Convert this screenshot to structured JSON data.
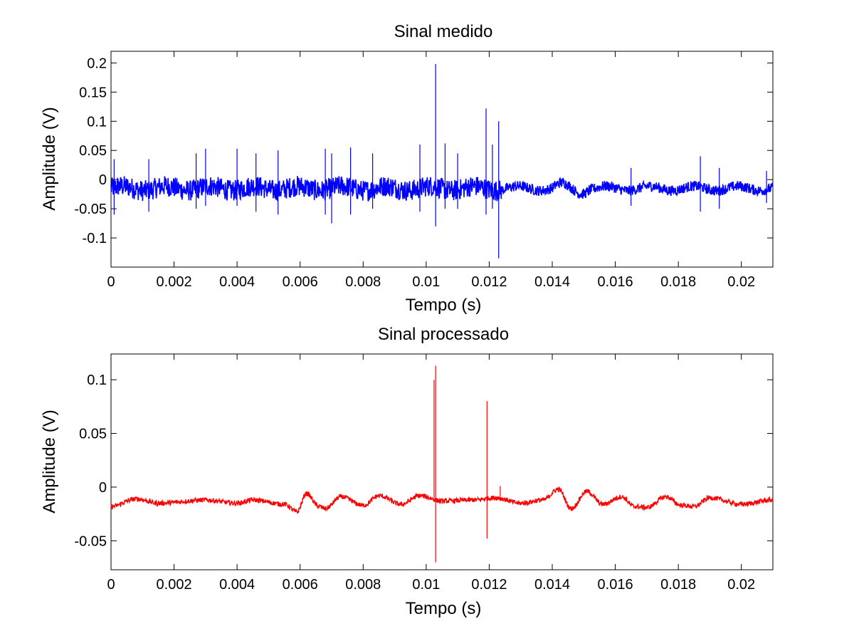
{
  "chart_data": [
    {
      "type": "line",
      "title": "Sinal medido",
      "xlabel": "Tempo (s)",
      "ylabel": "Amplitude (V)",
      "xlim": [
        0,
        0.021
      ],
      "ylim": [
        -0.15,
        0.22
      ],
      "xticks": [
        0,
        0.002,
        0.004,
        0.006,
        0.008,
        0.01,
        0.012,
        0.014,
        0.016,
        0.018,
        0.02
      ],
      "xtick_labels": [
        "0",
        "0.002",
        "0.004",
        "0.006",
        "0.008",
        "0.01",
        "0.012",
        "0.014",
        "0.016",
        "0.018",
        "0.02"
      ],
      "yticks": [
        -0.1,
        -0.05,
        0,
        0.05,
        0.1,
        0.15,
        0.2
      ],
      "ytick_labels": [
        "-0.1",
        "-0.05",
        "0",
        "0.05",
        "0.1",
        "0.15",
        "0.2"
      ],
      "grid": false,
      "series": [
        {
          "color": "#0000ff",
          "baseline": -0.015,
          "description": "noisy measured signal with many impulsive spikes; noise band roughly -0.035..0.005 V before 0.0124 s, narrower after",
          "spikes": [
            {
              "x": 0.0001,
              "ymax": 0.035,
              "ymin": -0.06
            },
            {
              "x": 0.0012,
              "ymax": 0.035,
              "ymin": -0.055
            },
            {
              "x": 0.0027,
              "ymax": 0.045,
              "ymin": -0.05
            },
            {
              "x": 0.003,
              "ymax": 0.053,
              "ymin": -0.045
            },
            {
              "x": 0.004,
              "ymax": 0.053,
              "ymin": -0.045
            },
            {
              "x": 0.0046,
              "ymax": 0.045,
              "ymin": -0.055
            },
            {
              "x": 0.0053,
              "ymax": 0.05,
              "ymin": -0.06
            },
            {
              "x": 0.0068,
              "ymax": 0.053,
              "ymin": -0.06
            },
            {
              "x": 0.007,
              "ymax": 0.045,
              "ymin": -0.075
            },
            {
              "x": 0.0076,
              "ymax": 0.055,
              "ymin": -0.06
            },
            {
              "x": 0.0083,
              "ymax": 0.045,
              "ymin": -0.05
            },
            {
              "x": 0.0098,
              "ymax": 0.06,
              "ymin": -0.055
            },
            {
              "x": 0.0103,
              "ymax": 0.198,
              "ymin": -0.08
            },
            {
              "x": 0.0106,
              "ymax": 0.062,
              "ymin": -0.05
            },
            {
              "x": 0.011,
              "ymax": 0.045,
              "ymin": -0.05
            },
            {
              "x": 0.0119,
              "ymax": 0.122,
              "ymin": -0.06
            },
            {
              "x": 0.0121,
              "ymax": 0.06,
              "ymin": -0.05
            },
            {
              "x": 0.0123,
              "ymax": 0.1,
              "ymin": -0.135
            },
            {
              "x": 0.0165,
              "ymax": 0.02,
              "ymin": -0.045
            },
            {
              "x": 0.0187,
              "ymax": 0.04,
              "ymin": -0.055
            },
            {
              "x": 0.0193,
              "ymax": 0.02,
              "ymin": -0.05
            },
            {
              "x": 0.0208,
              "ymax": 0.015,
              "ymin": -0.04
            }
          ]
        }
      ]
    },
    {
      "type": "line",
      "title": "Sinal processado",
      "xlabel": "Tempo (s)",
      "ylabel": "Amplitude (V)",
      "xlim": [
        0,
        0.021
      ],
      "ylim": [
        -0.077,
        0.124
      ],
      "xticks": [
        0,
        0.002,
        0.004,
        0.006,
        0.008,
        0.01,
        0.012,
        0.014,
        0.016,
        0.018,
        0.02
      ],
      "xtick_labels": [
        "0",
        "0.002",
        "0.004",
        "0.006",
        "0.008",
        "0.01",
        "0.012",
        "0.014",
        "0.016",
        "0.018",
        "0.02"
      ],
      "yticks": [
        -0.05,
        0,
        0.05,
        0.1
      ],
      "ytick_labels": [
        "-0.05",
        "0",
        "0.05",
        "0.1"
      ],
      "grid": false,
      "series": [
        {
          "color": "#ff0000",
          "baseline": -0.014,
          "description": "smoothed processed signal with low-frequency oscillations and three isolated spikes",
          "oscillations": [
            {
              "x": 0.0,
              "y": -0.018
            },
            {
              "x": 0.0008,
              "y": -0.011
            },
            {
              "x": 0.0015,
              "y": -0.015
            },
            {
              "x": 0.003,
              "y": -0.012
            },
            {
              "x": 0.004,
              "y": -0.015
            },
            {
              "x": 0.0045,
              "y": -0.012
            },
            {
              "x": 0.0055,
              "y": -0.016
            },
            {
              "x": 0.0059,
              "y": -0.023
            },
            {
              "x": 0.0062,
              "y": -0.006
            },
            {
              "x": 0.0066,
              "y": -0.018
            },
            {
              "x": 0.0068,
              "y": -0.02
            },
            {
              "x": 0.0073,
              "y": -0.009
            },
            {
              "x": 0.008,
              "y": -0.017
            },
            {
              "x": 0.0085,
              "y": -0.008
            },
            {
              "x": 0.0092,
              "y": -0.016
            },
            {
              "x": 0.0098,
              "y": -0.008
            },
            {
              "x": 0.0105,
              "y": -0.013
            },
            {
              "x": 0.0115,
              "y": -0.012
            },
            {
              "x": 0.0122,
              "y": -0.01
            },
            {
              "x": 0.013,
              "y": -0.015
            },
            {
              "x": 0.0137,
              "y": -0.012
            },
            {
              "x": 0.0142,
              "y": -0.002
            },
            {
              "x": 0.0146,
              "y": -0.02
            },
            {
              "x": 0.0151,
              "y": -0.004
            },
            {
              "x": 0.0156,
              "y": -0.016
            },
            {
              "x": 0.0162,
              "y": -0.009
            },
            {
              "x": 0.0166,
              "y": -0.018
            },
            {
              "x": 0.017,
              "y": -0.019
            },
            {
              "x": 0.0176,
              "y": -0.009
            },
            {
              "x": 0.0181,
              "y": -0.017
            },
            {
              "x": 0.0185,
              "y": -0.018
            },
            {
              "x": 0.019,
              "y": -0.01
            },
            {
              "x": 0.02,
              "y": -0.016
            },
            {
              "x": 0.021,
              "y": -0.012
            }
          ],
          "spikes": [
            {
              "x": 0.01025,
              "ymax": 0.1,
              "ymin": -0.013
            },
            {
              "x": 0.0103,
              "ymax": 0.113,
              "ymin": -0.07
            },
            {
              "x": 0.01193,
              "ymax": 0.08,
              "ymin": -0.048
            },
            {
              "x": 0.01235,
              "ymax": 0.001,
              "ymin": -0.013
            }
          ]
        }
      ]
    }
  ]
}
